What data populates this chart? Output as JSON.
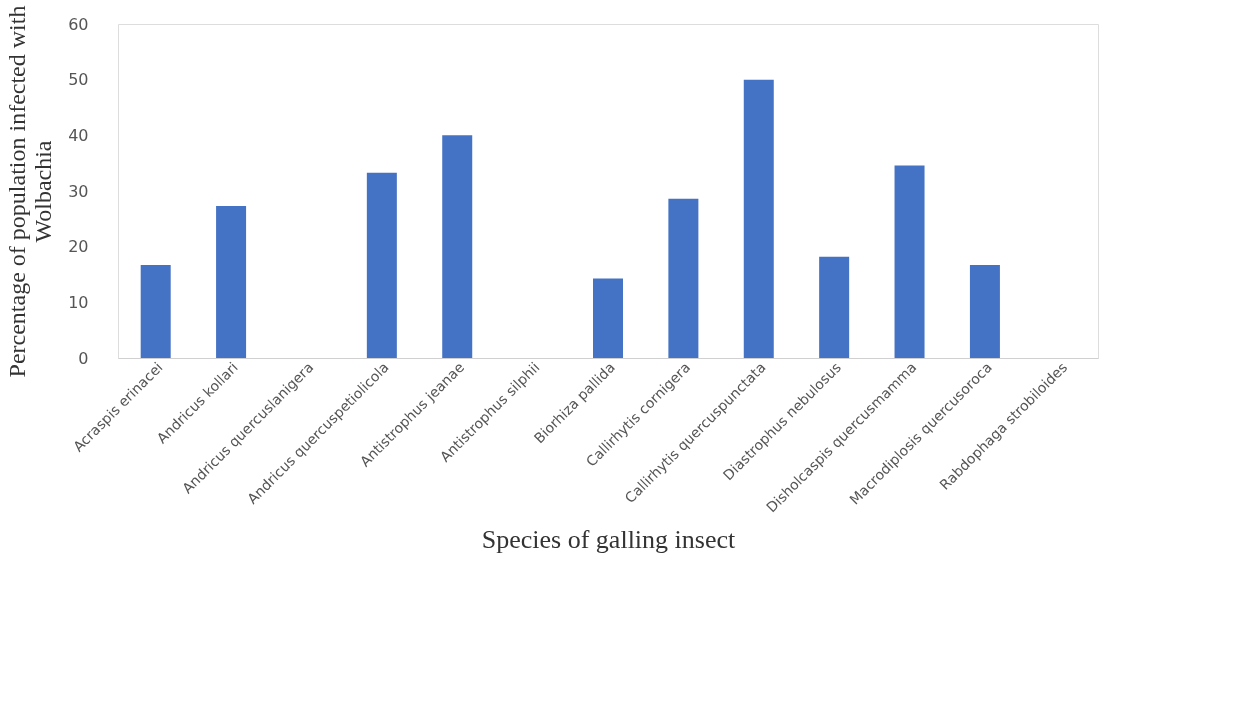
{
  "chart_data": {
    "type": "bar",
    "xlabel": "Species of galling insect",
    "ylabel": "Percentage of population infected with Wolbachia",
    "categories": [
      "Acraspis erinacei",
      "Andricus kollari",
      "Andricus quercuslanigera",
      "Andricus quercuspetiolicola",
      "Antistrophus jeanae",
      "Antistrophus silphii",
      "Biorhiza pallida",
      "Callirhytis cornigera",
      "Callirhytis quercuspunctata",
      "Diastrophus nebulosus",
      "Disholcaspis quercusmamma",
      "Macrodiplosis quercusoroca",
      "Rabdophaga strobiloides"
    ],
    "values": [
      16.7,
      27.3,
      0,
      33.3,
      40,
      0,
      14.3,
      28.6,
      50,
      18.2,
      34.6,
      16.7,
      0
    ],
    "color": "#4472c4",
    "ylim": [
      0,
      60
    ],
    "yticks": [
      0,
      10,
      20,
      30,
      40,
      50,
      60
    ],
    "grid": false
  }
}
